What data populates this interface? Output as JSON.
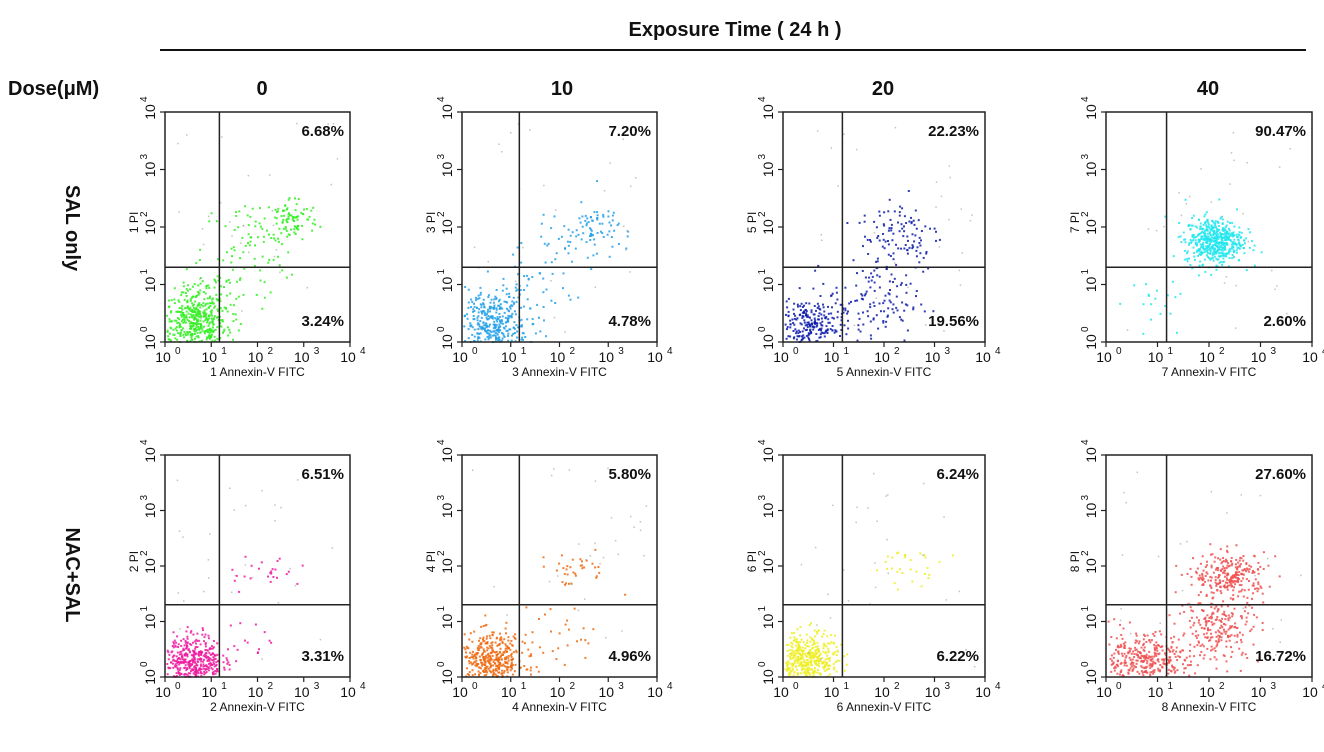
{
  "header": {
    "title": "Exposure Time ( 24 h )",
    "dose_label": "Dose(μM)",
    "doses": [
      "0",
      "10",
      "20",
      "40"
    ],
    "row_labels": [
      "SAL only",
      "NAC+SAL"
    ]
  },
  "chart_data": [
    {
      "type": "scatter",
      "panel": 1,
      "xlabel": "1 Annexin-V FITC",
      "ylabel": "1 PI",
      "xscale": "log",
      "yscale": "log",
      "xlim": [
        1,
        10000
      ],
      "ylim": [
        1,
        10000
      ],
      "xticks": [
        "10",
        "0",
        "10",
        "1",
        "10",
        "2",
        "10",
        "3",
        "10",
        "4"
      ],
      "color": "#33ee22",
      "quadrant_labels": {
        "upper_right": "6.68%",
        "lower_right": "3.24%"
      },
      "quadrant_split": {
        "x": 15,
        "y": 20
      },
      "clusters": [
        {
          "cx": 4,
          "cy": 2,
          "sx": 0.35,
          "sy": 0.3,
          "n": 420
        },
        {
          "cx": 10,
          "cy": 4,
          "sx": 0.4,
          "sy": 0.35,
          "n": 120
        },
        {
          "cx": 60,
          "cy": 40,
          "sx": 0.5,
          "sy": 0.45,
          "n": 70
        },
        {
          "cx": 500,
          "cy": 140,
          "sx": 0.3,
          "sy": 0.2,
          "n": 90
        }
      ]
    },
    {
      "type": "scatter",
      "panel": 3,
      "xlabel": "3 Annexin-V FITC",
      "ylabel": "3 PI",
      "xscale": "log",
      "yscale": "log",
      "xlim": [
        1,
        10000
      ],
      "ylim": [
        1,
        10000
      ],
      "xticks": [
        "10",
        "0",
        "10",
        "1",
        "10",
        "2",
        "10",
        "3",
        "10",
        "4"
      ],
      "color": "#22a0e8",
      "quadrant_labels": {
        "upper_right": "7.20%",
        "lower_right": "4.78%"
      },
      "quadrant_split": {
        "x": 15,
        "y": 20
      },
      "clusters": [
        {
          "cx": 4,
          "cy": 2,
          "sx": 0.35,
          "sy": 0.3,
          "n": 380
        },
        {
          "cx": 20,
          "cy": 6,
          "sx": 0.45,
          "sy": 0.4,
          "n": 60
        },
        {
          "cx": 500,
          "cy": 100,
          "sx": 0.25,
          "sy": 0.2,
          "n": 60
        },
        {
          "cx": 150,
          "cy": 60,
          "sx": 0.5,
          "sy": 0.4,
          "n": 40
        }
      ]
    },
    {
      "type": "scatter",
      "panel": 5,
      "xlabel": "5 Annexin-V FITC",
      "ylabel": "5 PI",
      "xscale": "log",
      "yscale": "log",
      "xlim": [
        1,
        10000
      ],
      "ylim": [
        1,
        10000
      ],
      "xticks": [
        "10",
        "0",
        "10",
        "1",
        "10",
        "2",
        "10",
        "3",
        "10",
        "4"
      ],
      "color": "#0a1aa8",
      "quadrant_labels": {
        "upper_right": "22.23%",
        "lower_right": "19.56%"
      },
      "quadrant_split": {
        "x": 15,
        "y": 20
      },
      "clusters": [
        {
          "cx": 3,
          "cy": 2,
          "sx": 0.35,
          "sy": 0.25,
          "n": 260
        },
        {
          "cx": 60,
          "cy": 5,
          "sx": 0.45,
          "sy": 0.35,
          "n": 120
        },
        {
          "cx": 200,
          "cy": 80,
          "sx": 0.4,
          "sy": 0.35,
          "n": 110
        }
      ]
    },
    {
      "type": "scatter",
      "panel": 7,
      "xlabel": "7 Annexin-V FITC",
      "ylabel": "7 PI",
      "xscale": "log",
      "yscale": "log",
      "xlim": [
        1,
        10000
      ],
      "ylim": [
        1,
        10000
      ],
      "xticks": [
        "10",
        "0",
        "10",
        "1",
        "10",
        "2",
        "10",
        "3",
        "10",
        "4"
      ],
      "color": "#22e6ee",
      "quadrant_labels": {
        "upper_right": "90.47%",
        "lower_right": "2.60%"
      },
      "quadrant_split": {
        "x": 15,
        "y": 20
      },
      "clusters": [
        {
          "cx": 120,
          "cy": 60,
          "sx": 0.28,
          "sy": 0.2,
          "n": 520
        },
        {
          "cx": 8,
          "cy": 3,
          "sx": 0.35,
          "sy": 0.3,
          "n": 20
        }
      ]
    },
    {
      "type": "scatter",
      "panel": 2,
      "xlabel": "2 Annexin-V FITC",
      "ylabel": "2 PI",
      "xscale": "log",
      "yscale": "log",
      "xlim": [
        1,
        10000
      ],
      "ylim": [
        1,
        10000
      ],
      "xticks": [
        "10",
        "0",
        "10",
        "1",
        "10",
        "2",
        "10",
        "3",
        "10",
        "4"
      ],
      "color": "#ee1aa0",
      "quadrant_labels": {
        "upper_right": "6.51%",
        "lower_right": "3.31%"
      },
      "quadrant_split": {
        "x": 15,
        "y": 20
      },
      "clusters": [
        {
          "cx": 4,
          "cy": 2,
          "sx": 0.3,
          "sy": 0.25,
          "n": 420
        },
        {
          "cx": 150,
          "cy": 80,
          "sx": 0.45,
          "sy": 0.15,
          "n": 25
        },
        {
          "cx": 60,
          "cy": 4,
          "sx": 0.4,
          "sy": 0.3,
          "n": 20
        }
      ]
    },
    {
      "type": "scatter",
      "panel": 4,
      "xlabel": "4 Annexin-V FITC",
      "ylabel": "4 PI",
      "xscale": "log",
      "yscale": "log",
      "xlim": [
        1,
        10000
      ],
      "ylim": [
        1,
        10000
      ],
      "xticks": [
        "10",
        "0",
        "10",
        "1",
        "10",
        "2",
        "10",
        "3",
        "10",
        "4"
      ],
      "color": "#ee6a10",
      "quadrant_labels": {
        "upper_right": "5.80%",
        "lower_right": "4.96%"
      },
      "quadrant_split": {
        "x": 15,
        "y": 20
      },
      "clusters": [
        {
          "cx": 4,
          "cy": 2,
          "sx": 0.35,
          "sy": 0.25,
          "n": 420
        },
        {
          "cx": 200,
          "cy": 90,
          "sx": 0.4,
          "sy": 0.15,
          "n": 35
        },
        {
          "cx": 100,
          "cy": 5,
          "sx": 0.4,
          "sy": 0.3,
          "n": 25
        }
      ]
    },
    {
      "type": "scatter",
      "panel": 6,
      "xlabel": "6 Annexin-V FITC",
      "ylabel": "6 PI",
      "xscale": "log",
      "yscale": "log",
      "xlim": [
        1,
        10000
      ],
      "ylim": [
        1,
        10000
      ],
      "xticks": [
        "10",
        "0",
        "10",
        "1",
        "10",
        "2",
        "10",
        "3",
        "10",
        "4"
      ],
      "color": "#eeee22",
      "quadrant_labels": {
        "upper_right": "6.24%",
        "lower_right": "6.22%"
      },
      "quadrant_split": {
        "x": 15,
        "y": 20
      },
      "clusters": [
        {
          "cx": 3,
          "cy": 2,
          "sx": 0.3,
          "sy": 0.25,
          "n": 450
        },
        {
          "cx": 300,
          "cy": 100,
          "sx": 0.35,
          "sy": 0.15,
          "n": 30
        }
      ]
    },
    {
      "type": "scatter",
      "panel": 8,
      "xlabel": "8 Annexin-V FITC",
      "ylabel": "8 PI",
      "xscale": "log",
      "yscale": "log",
      "xlim": [
        1,
        10000
      ],
      "ylim": [
        1,
        10000
      ],
      "xticks": [
        "10",
        "0",
        "10",
        "1",
        "10",
        "2",
        "10",
        "3",
        "10",
        "4"
      ],
      "color": "#f05050",
      "quadrant_labels": {
        "upper_right": "27.60%",
        "lower_right": "16.72%"
      },
      "quadrant_split": {
        "x": 15,
        "y": 20
      },
      "clusters": [
        {
          "cx": 5,
          "cy": 2,
          "sx": 0.45,
          "sy": 0.25,
          "n": 380
        },
        {
          "cx": 150,
          "cy": 8,
          "sx": 0.4,
          "sy": 0.3,
          "n": 220
        },
        {
          "cx": 250,
          "cy": 70,
          "sx": 0.35,
          "sy": 0.2,
          "n": 260
        }
      ]
    }
  ]
}
